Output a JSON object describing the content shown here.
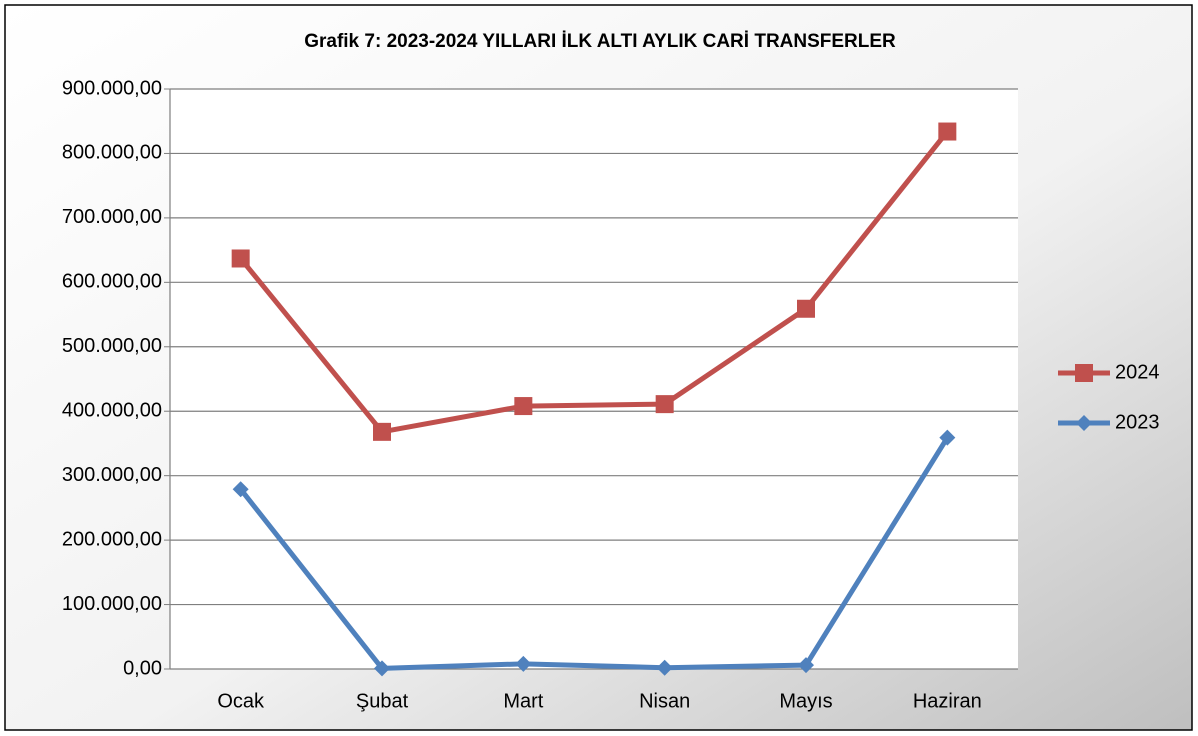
{
  "chart_data": {
    "type": "line",
    "title": "Grafik 7: 2023-2024 YILLARI İLK ALTI AYLIK CARİ TRANSFERLER",
    "categories": [
      "Ocak",
      "Şubat",
      "Mart",
      "Nisan",
      "Mayıs",
      "Haziran"
    ],
    "series": [
      {
        "name": "2024",
        "color": "#c0504d",
        "marker": "square",
        "values": [
          637000,
          368000,
          408000,
          411000,
          559000,
          834000
        ]
      },
      {
        "name": "2023",
        "color": "#4f81bd",
        "marker": "diamond",
        "values": [
          279000,
          1000,
          8000,
          2000,
          6000,
          359000
        ]
      }
    ],
    "ylim": [
      0,
      900000
    ],
    "yticks": [
      {
        "value": 0,
        "label": "0,00"
      },
      {
        "value": 100000,
        "label": "100.000,00"
      },
      {
        "value": 200000,
        "label": "200.000,00"
      },
      {
        "value": 300000,
        "label": "300.000,00"
      },
      {
        "value": 400000,
        "label": "400.000,00"
      },
      {
        "value": 500000,
        "label": "500.000,00"
      },
      {
        "value": 600000,
        "label": "600.000,00"
      },
      {
        "value": 700000,
        "label": "700.000,00"
      },
      {
        "value": 800000,
        "label": "800.000,00"
      },
      {
        "value": 900000,
        "label": "900.000,00"
      }
    ],
    "grid": true,
    "legend": "right"
  }
}
